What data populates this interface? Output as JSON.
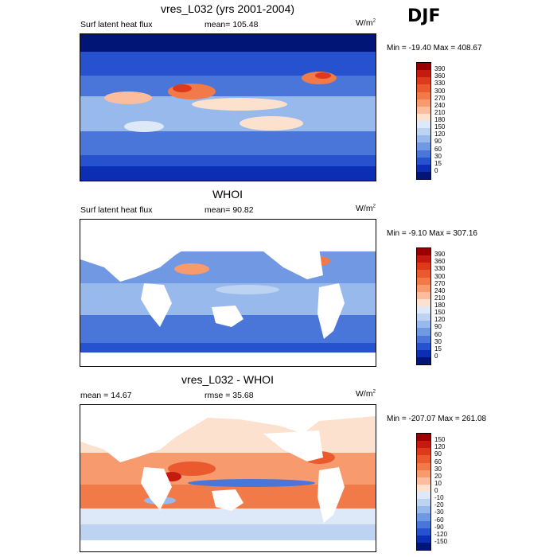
{
  "season": "DJF",
  "panels": [
    {
      "title": "vres_L032 (yrs 2001-2004)",
      "left_label": "Surf latent heat flux",
      "center_label": "mean= 105.48",
      "units": "W/m",
      "units_sup": "2",
      "minmax": "Min = -19.40 Max = 408.67",
      "colorbar_labels": [
        "390",
        "360",
        "330",
        "300",
        "270",
        "240",
        "210",
        "180",
        "150",
        "120",
        "90",
        "60",
        "30",
        "15",
        "0"
      ],
      "colorbar_colors": [
        "#9a0000",
        "#c41a10",
        "#dd3a1c",
        "#ea5a2e",
        "#f27a48",
        "#f79a6e",
        "#fbbd9d",
        "#fde1cf",
        "#dde9f8",
        "#bdd3f2",
        "#98b9ec",
        "#7098e3",
        "#4a76da",
        "#2651cf",
        "#0b2eb4",
        "#001575"
      ],
      "map_style": "model"
    },
    {
      "title": "WHOI",
      "left_label": "Surf latent heat flux",
      "center_label": "mean=  90.82",
      "units": "W/m",
      "units_sup": "2",
      "minmax": "Min =  -9.10 Max = 307.16",
      "colorbar_labels": [
        "390",
        "360",
        "330",
        "300",
        "270",
        "240",
        "210",
        "180",
        "150",
        "120",
        "90",
        "60",
        "30",
        "15",
        "0"
      ],
      "colorbar_colors": [
        "#9a0000",
        "#c41a10",
        "#dd3a1c",
        "#ea5a2e",
        "#f27a48",
        "#f79a6e",
        "#fbbd9d",
        "#fde1cf",
        "#dde9f8",
        "#bdd3f2",
        "#98b9ec",
        "#7098e3",
        "#4a76da",
        "#2651cf",
        "#0b2eb4",
        "#001575"
      ],
      "map_style": "obs"
    },
    {
      "title": "vres_L032 - WHOI",
      "left_label": "mean =  14.67",
      "center_label": "rmse =  35.68",
      "units": "W/m",
      "units_sup": "2",
      "minmax": "Min = -207.07 Max = 261.08",
      "colorbar_labels": [
        "150",
        "120",
        "90",
        "60",
        "30",
        "20",
        "10",
        "0",
        "-10",
        "-20",
        "-30",
        "-60",
        "-90",
        "-120",
        "-150"
      ],
      "colorbar_colors": [
        "#9a0000",
        "#c41a10",
        "#dd3a1c",
        "#ea5a2e",
        "#f27a48",
        "#f79a6e",
        "#fbbd9d",
        "#fde1cf",
        "#dde9f8",
        "#bdd3f2",
        "#98b9ec",
        "#7098e3",
        "#4a76da",
        "#2651cf",
        "#0b2eb4",
        "#001575"
      ],
      "map_style": "diff"
    }
  ]
}
